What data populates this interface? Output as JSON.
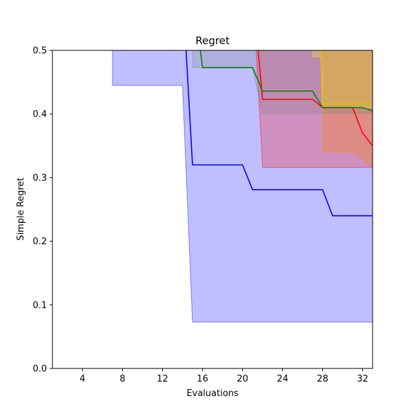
{
  "chart_data": {
    "type": "line",
    "title": "Regret",
    "xlabel": "Evaluations",
    "ylabel": "Simple Regret",
    "xlim": [
      1,
      33
    ],
    "ylim": [
      0.0,
      0.5
    ],
    "xticks": [
      4,
      8,
      12,
      16,
      20,
      24,
      28,
      32
    ],
    "yticks": [
      0.0,
      0.1,
      0.2,
      0.3,
      0.4,
      0.5
    ],
    "xtick_labels": [
      "4",
      "8",
      "12",
      "16",
      "20",
      "24",
      "28",
      "32"
    ],
    "ytick_labels": [
      "0.0",
      "0.1",
      "0.2",
      "0.3",
      "0.4",
      "0.5"
    ],
    "grid": false,
    "legend": "none",
    "series": [
      {
        "color": "#0000ff",
        "band_color": "#0000ff",
        "band_opacity": 0.25,
        "mean": [
          [
            1,
            0.6
          ],
          [
            14,
            0.6
          ],
          [
            15,
            0.32
          ],
          [
            20,
            0.32
          ],
          [
            21,
            0.281
          ],
          [
            28,
            0.281
          ],
          [
            29,
            0.24
          ],
          [
            33,
            0.24
          ]
        ],
        "upper": [
          [
            1,
            0.6
          ],
          [
            33,
            0.6
          ]
        ],
        "lower": [
          [
            1,
            0.6
          ],
          [
            7,
            0.6
          ],
          [
            7,
            0.445
          ],
          [
            14,
            0.445
          ],
          [
            15,
            0.073
          ],
          [
            33,
            0.073
          ]
        ]
      },
      {
        "color": "#ff0000",
        "band_color": "#ff0000",
        "band_opacity": 0.25,
        "mean": [
          [
            1,
            0.6
          ],
          [
            21,
            0.6
          ],
          [
            22,
            0.423
          ],
          [
            27,
            0.423
          ],
          [
            28,
            0.41
          ],
          [
            31,
            0.41
          ],
          [
            32,
            0.37
          ],
          [
            33,
            0.35
          ]
        ],
        "upper": [
          [
            1,
            0.6
          ],
          [
            33,
            0.6
          ]
        ],
        "lower": [
          [
            1,
            0.6
          ],
          [
            21,
            0.6
          ],
          [
            22,
            0.316
          ],
          [
            33,
            0.316
          ]
        ]
      },
      {
        "color": "#ff8c00",
        "band_color": "#ff8c00",
        "band_opacity": 0.3,
        "mean": [
          [
            1,
            0.6
          ],
          [
            33,
            0.6
          ]
        ],
        "upper": [
          [
            1,
            0.6
          ],
          [
            33,
            0.6
          ]
        ],
        "lower": [
          [
            1,
            0.6
          ],
          [
            28,
            0.6
          ],
          [
            28,
            0.34
          ],
          [
            31,
            0.34
          ],
          [
            33,
            0.316
          ]
        ]
      },
      {
        "color": "#008000",
        "band_color": "#808080",
        "band_opacity": 0.25,
        "mean": [
          [
            1,
            0.6
          ],
          [
            15,
            0.6
          ],
          [
            16,
            0.473
          ],
          [
            21,
            0.473
          ],
          [
            22,
            0.436
          ],
          [
            27,
            0.436
          ],
          [
            28,
            0.41
          ],
          [
            32,
            0.41
          ],
          [
            33,
            0.405
          ]
        ],
        "upper": [
          [
            1,
            0.6
          ],
          [
            33,
            0.6
          ]
        ],
        "lower": [
          [
            1,
            0.6
          ],
          [
            15,
            0.6
          ],
          [
            15,
            0.473
          ],
          [
            20,
            0.473
          ],
          [
            21,
            0.473
          ],
          [
            22,
            0.401
          ],
          [
            33,
            0.401
          ]
        ]
      },
      {
        "color": "#e0c000",
        "band_color": "#ffff00",
        "band_opacity": 0.25,
        "mean": [
          [
            1,
            0.6
          ],
          [
            27.5,
            0.6
          ],
          [
            28,
            0.416
          ],
          [
            33,
            0.416
          ]
        ],
        "upper": [
          [
            1,
            0.6
          ],
          [
            33,
            0.6
          ]
        ],
        "lower": [
          [
            1,
            0.6
          ],
          [
            27,
            0.6
          ],
          [
            27,
            0.49
          ],
          [
            28,
            0.49
          ],
          [
            28,
            0.41
          ],
          [
            33,
            0.41
          ]
        ]
      }
    ]
  }
}
